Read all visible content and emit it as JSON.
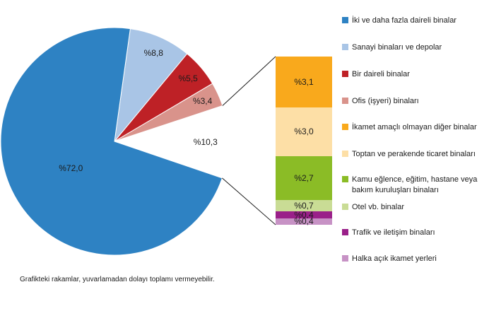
{
  "chart_data": {
    "type": "pie",
    "variant": "bar-of-pie",
    "title": "",
    "unit_prefix": "%",
    "legend_position": "right",
    "pie": {
      "slices": [
        {
          "label": "İki ve daha fazla daireli binalar",
          "value": 72.0,
          "display": "%72,0",
          "color": "#2E82C3"
        },
        {
          "label": "Sanayi binaları ve depolar",
          "value": 8.8,
          "display": "%8,8",
          "color": "#A9C5E6"
        },
        {
          "label": "Bir daireli binalar",
          "value": 5.5,
          "display": "%5,5",
          "color": "#BE2126"
        },
        {
          "label": "Ofis (işyeri) binaları",
          "value": 3.4,
          "display": "%3,4",
          "color": "#D9938B"
        }
      ],
      "other_slice": {
        "value": 10.3,
        "display": "%10,3",
        "color": "#FFFFFF"
      }
    },
    "bar": {
      "segments": [
        {
          "label": "İkamet amaçlı olmayan diğer binalar",
          "value": 3.1,
          "display": "%3,1",
          "color": "#F9A91C"
        },
        {
          "label": "Toptan ve perakende ticaret binaları",
          "value": 3.0,
          "display": "%3,0",
          "color": "#FDDFA6"
        },
        {
          "label": "Kamu eğlence, eğitim, hastane veya bakım kuruluşları binaları",
          "value": 2.7,
          "display": "%2,7",
          "color": "#8BBC26"
        },
        {
          "label": "Otel vb. binalar",
          "value": 0.7,
          "display": "%0,7",
          "color": "#C9DC95"
        },
        {
          "label": "Trafik ve iletişim binaları",
          "value": 0.4,
          "display": "%0,4",
          "color": "#9A2089"
        },
        {
          "label": "Halka açık ikamet yerleri",
          "value": 0.4,
          "display": "%0,4",
          "color": "#C792C5"
        }
      ]
    },
    "footnote": "Grafikteki rakamlar, yuvarlamadan dolayı toplamı vermeyebilir."
  }
}
